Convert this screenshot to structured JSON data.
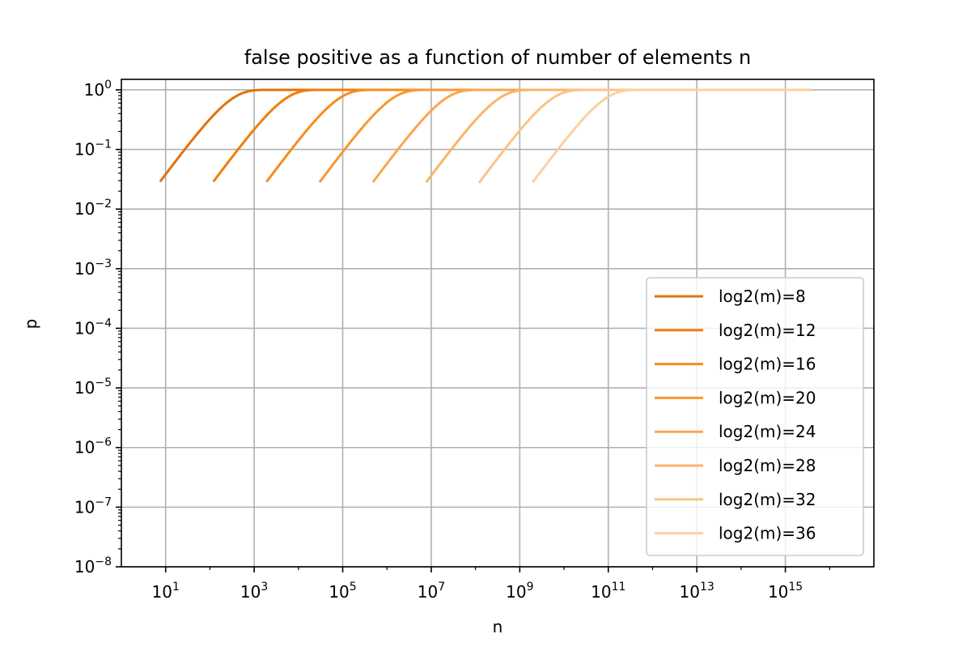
{
  "chart_data": {
    "type": "line",
    "title": "false positive as a function of number of elements n",
    "xlabel": "n",
    "ylabel": "p",
    "xscale": "log",
    "yscale": "log",
    "xlim": [
      1,
      1e+17
    ],
    "ylim": [
      1e-08,
      1.5
    ],
    "grid": true,
    "legend_position": "lower right",
    "formula_note_hidden": "",
    "x_ticks": [
      {
        "base": "10",
        "exp": "1",
        "value": 10
      },
      {
        "base": "10",
        "exp": "3",
        "value": 1000
      },
      {
        "base": "10",
        "exp": "5",
        "value": 100000
      },
      {
        "base": "10",
        "exp": "7",
        "value": 10000000
      },
      {
        "base": "10",
        "exp": "9",
        "value": 1000000000
      },
      {
        "base": "10",
        "exp": "11",
        "value": 100000000000
      },
      {
        "base": "10",
        "exp": "13",
        "value": 10000000000000
      },
      {
        "base": "10",
        "exp": "15",
        "value": 1000000000000000
      }
    ],
    "y_ticks": [
      {
        "base": "10",
        "exp": "0",
        "value": 1
      },
      {
        "base": "10",
        "exp": "−1",
        "value": 0.1
      },
      {
        "base": "10",
        "exp": "−2",
        "value": 0.01
      },
      {
        "base": "10",
        "exp": "−3",
        "value": 0.001
      },
      {
        "base": "10",
        "exp": "−4",
        "value": 0.0001
      },
      {
        "base": "10",
        "exp": "−5",
        "value": 1e-05
      },
      {
        "base": "10",
        "exp": "−6",
        "value": 1e-06
      },
      {
        "base": "10",
        "exp": "−7",
        "value": 1e-07
      },
      {
        "base": "10",
        "exp": "−8",
        "value": 1e-08
      }
    ],
    "series": [
      {
        "name": "log2(m)=8",
        "log2m": 8,
        "color": "#e0740a",
        "x_start": 7.5,
        "x_end": 3700000000000000.0
      },
      {
        "name": "log2(m)=12",
        "log2m": 12,
        "color": "#f27d0a",
        "x_start": 120,
        "x_end": 3700000000000000.0
      },
      {
        "name": "log2(m)=16",
        "log2m": 16,
        "color": "#f78c1e",
        "x_start": 1900,
        "x_end": 3700000000000000.0
      },
      {
        "name": "log2(m)=20",
        "log2m": 20,
        "color": "#f99833",
        "x_start": 30000,
        "x_end": 3700000000000000.0
      },
      {
        "name": "log2(m)=24",
        "log2m": 24,
        "color": "#faa64f",
        "x_start": 480000,
        "x_end": 3700000000000000.0
      },
      {
        "name": "log2(m)=28",
        "log2m": 28,
        "color": "#fbb46b",
        "x_start": 7700000,
        "x_end": 3700000000000000.0
      },
      {
        "name": "log2(m)=32",
        "log2m": 32,
        "color": "#fdc287",
        "x_start": 120000000,
        "x_end": 3700000000000000.0
      },
      {
        "name": "log2(m)=36",
        "log2m": 36,
        "color": "#fdcfa1",
        "x_start": 1950000000,
        "x_end": 3700000000000000.0
      }
    ]
  }
}
